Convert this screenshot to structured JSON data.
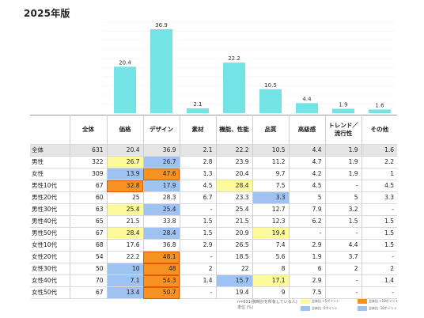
{
  "page_title": "2025年版",
  "colors": {
    "bar": "#74e3e6",
    "yellow": "#fdfa9b",
    "blue": "#9ec3f2",
    "orange": "#f79222"
  },
  "chart_data": {
    "type": "bar",
    "categories": [
      "価格",
      "デザイン",
      "素材",
      "機能、性能",
      "品質",
      "高級感",
      "トレンド／流行性",
      "その他"
    ],
    "values": [
      20.4,
      36.9,
      2.1,
      22.2,
      10.5,
      4.4,
      1.9,
      1.6
    ],
    "ylim": [
      0,
      40
    ],
    "grid": true
  },
  "table": {
    "header_total": "全体",
    "columns": [
      "価格",
      "デザイン",
      "素材",
      "機能、性能",
      "品質",
      "高級感",
      "トレンド／流行性",
      "その他"
    ],
    "rows": [
      {
        "label": "全体",
        "total": "631",
        "cells": [
          "20.4",
          "36.9",
          "2.1",
          "22.2",
          "10.5",
          "4.4",
          "1.9",
          "1.6"
        ],
        "hl": [
          "",
          "",
          "",
          "",
          "",
          "",
          "",
          ""
        ]
      },
      {
        "label": "男性",
        "total": "322",
        "cells": [
          "26.7",
          "26.7",
          "2.8",
          "23.9",
          "11.2",
          "4.7",
          "1.9",
          "2.2"
        ],
        "hl": [
          "y",
          "b",
          "",
          "",
          "",
          "",
          "",
          ""
        ]
      },
      {
        "label": "女性",
        "total": "309",
        "cells": [
          "13.9",
          "47.6",
          "1.3",
          "20.4",
          "9.7",
          "4.2",
          "1.9",
          "1"
        ],
        "hl": [
          "b",
          "o",
          "",
          "",
          "",
          "",
          "",
          ""
        ]
      },
      {
        "label": "男性10代",
        "total": "67",
        "cells": [
          "32.8",
          "17.9",
          "4.5",
          "28.4",
          "7.5",
          "4.5",
          "-",
          "4.5"
        ],
        "hl": [
          "o",
          "b",
          "",
          "y",
          "",
          "",
          "",
          ""
        ]
      },
      {
        "label": "男性20代",
        "total": "60",
        "cells": [
          "25",
          "28.3",
          "6.7",
          "23.3",
          "3.3",
          "5",
          "5",
          "3.3"
        ],
        "hl": [
          "",
          "",
          "",
          "",
          "b",
          "",
          "",
          ""
        ]
      },
      {
        "label": "男性30代",
        "total": "63",
        "cells": [
          "25.4",
          "25.4",
          "-",
          "25.4",
          "12.7",
          "7.9",
          "3.2",
          "-"
        ],
        "hl": [
          "y",
          "b",
          "",
          "",
          "",
          "",
          "",
          ""
        ]
      },
      {
        "label": "男性40代",
        "total": "65",
        "cells": [
          "21.5",
          "33.8",
          "1.5",
          "21.5",
          "12.3",
          "6.2",
          "1.5",
          "1.5"
        ],
        "hl": [
          "",
          "",
          "",
          "",
          "",
          "",
          "",
          ""
        ]
      },
      {
        "label": "男性50代",
        "total": "67",
        "cells": [
          "28.4",
          "28.4",
          "1.5",
          "20.9",
          "19.4",
          "-",
          "-",
          "1.5"
        ],
        "hl": [
          "y",
          "b",
          "",
          "",
          "y",
          "",
          "",
          ""
        ]
      },
      {
        "label": "女性10代",
        "total": "68",
        "cells": [
          "17.6",
          "36.8",
          "2.9",
          "26.5",
          "7.4",
          "2.9",
          "4.4",
          "1.5"
        ],
        "hl": [
          "",
          "",
          "",
          "",
          "",
          "",
          "",
          ""
        ]
      },
      {
        "label": "女性20代",
        "total": "54",
        "cells": [
          "22.2",
          "48.1",
          "-",
          "18.5",
          "5.6",
          "1.9",
          "3.7",
          "-"
        ],
        "hl": [
          "",
          "o",
          "",
          "",
          "",
          "",
          "",
          ""
        ]
      },
      {
        "label": "女性30代",
        "total": "50",
        "cells": [
          "10",
          "48",
          "2",
          "22",
          "8",
          "6",
          "2",
          "2"
        ],
        "hl": [
          "b",
          "o",
          "",
          "",
          "",
          "",
          "",
          ""
        ]
      },
      {
        "label": "女性40代",
        "total": "70",
        "cells": [
          "7.1",
          "54.3",
          "1.4",
          "15.7",
          "17.1",
          "2.9",
          "-",
          "1.4"
        ],
        "hl": [
          "b",
          "o",
          "",
          "b",
          "y",
          "",
          "",
          ""
        ]
      },
      {
        "label": "女性50代",
        "total": "67",
        "cells": [
          "13.4",
          "50.7",
          "-",
          "19.4",
          "9",
          "7.5",
          "-",
          "-"
        ],
        "hl": [
          "b",
          "o",
          "",
          "",
          "",
          "",
          "",
          ""
        ]
      }
    ]
  },
  "notes": {
    "line1": "n=631(腕時計を所有している人)",
    "line2": "単位 (%)"
  },
  "legend": [
    {
      "color": "#fdfa9b",
      "label": "全体比 +5ポイント"
    },
    {
      "color": "#f79222",
      "label": "全体比 +10ポイント"
    },
    {
      "color": "#9ec3f2",
      "label": "全体比 -5ポイント"
    },
    {
      "color": "#9ec3f2",
      "label": "全体比 -10ポイント"
    }
  ]
}
